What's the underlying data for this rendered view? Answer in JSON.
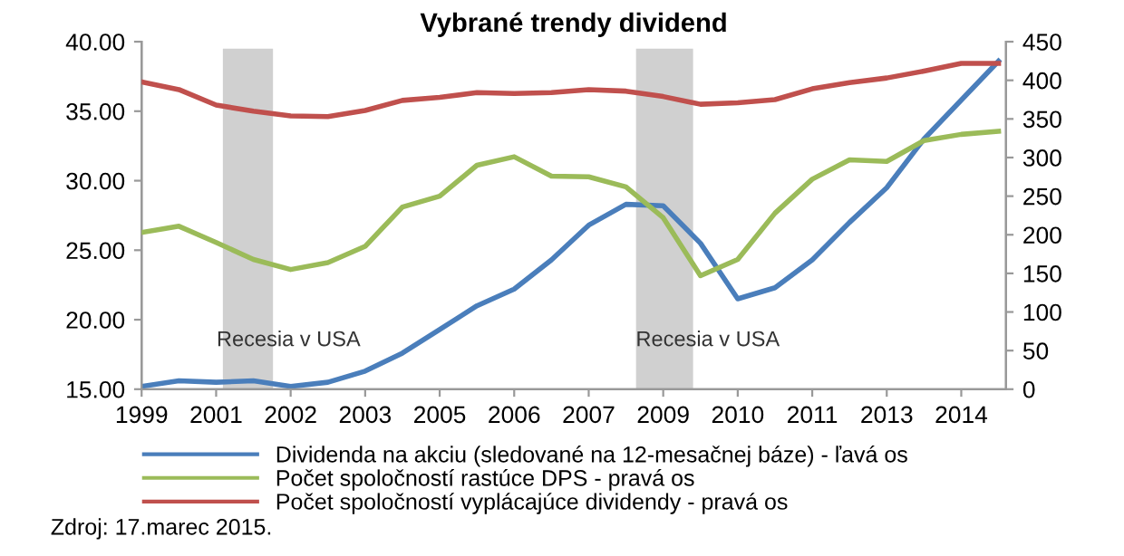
{
  "chart_data": {
    "type": "line",
    "title": "Vybrané trendy dividend",
    "categories": [
      "1999",
      null,
      "2001",
      null,
      "2002",
      null,
      "2003",
      null,
      "2005",
      null,
      "2006",
      null,
      "2007",
      null,
      "2009",
      null,
      "2010",
      null,
      "2011",
      null,
      "2013",
      null,
      "2014",
      null
    ],
    "ylim": [
      15,
      40
    ],
    "yticks": [
      {
        "value": 15,
        "label": "15.00"
      },
      {
        "value": 20,
        "label": "20.00"
      },
      {
        "value": 25,
        "label": "25.00"
      },
      {
        "value": 30,
        "label": "30.00"
      },
      {
        "value": 35,
        "label": "35.00"
      },
      {
        "value": 40,
        "label": "40.00"
      }
    ],
    "y2lim": [
      0,
      450
    ],
    "y2ticks": [
      0,
      50,
      100,
      150,
      200,
      250,
      300,
      350,
      400,
      450
    ],
    "legend": "bottom",
    "marker": "none",
    "line_style": "solid",
    "series": [
      {
        "name": "Dividenda na akciu (sledované na 12-mesačnej báze) - ľavá os",
        "color": "#4a7ebb",
        "axis": "y",
        "values": [
          15.2,
          15.6,
          15.5,
          15.6,
          15.2,
          15.5,
          16.3,
          17.6,
          19.3,
          21.0,
          22.2,
          24.3,
          26.8,
          28.3,
          28.2,
          25.5,
          21.5,
          22.3,
          24.3,
          27.0,
          29.5,
          33.0,
          35.8,
          38.6
        ]
      },
      {
        "name": "Počet spoločností rastúce DPS - pravá os",
        "color": "#9bbb59",
        "axis": "y2",
        "values": [
          203,
          211,
          190,
          168,
          155,
          164,
          185,
          236,
          250,
          290,
          301,
          276,
          275,
          262,
          222,
          147,
          168,
          228,
          272,
          297,
          295,
          322,
          330,
          334
        ]
      },
      {
        "name": "Počet spoločností vyplácajúce dividendy - pravá os",
        "color": "#c0504d",
        "axis": "y2",
        "values": [
          398,
          388,
          368,
          360,
          354,
          353,
          361,
          374,
          378,
          384,
          383,
          384,
          388,
          386,
          379,
          369,
          371,
          375,
          389,
          397,
          403,
          412,
          422,
          422
        ]
      }
    ],
    "annotations": [
      "Recesia v USA",
      "Recesia v USA",
      "Zdroj: 17.marec 2015."
    ]
  }
}
